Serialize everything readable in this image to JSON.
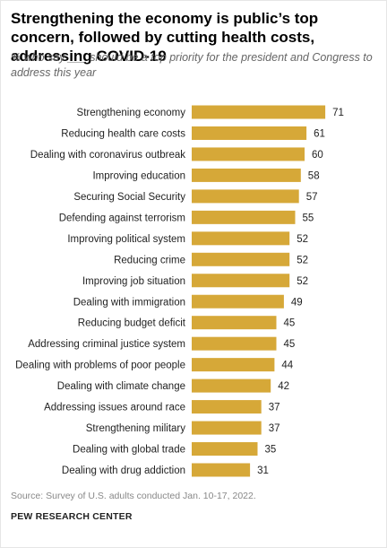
{
  "chart_data": {
    "type": "bar",
    "orientation": "horizontal",
    "title": "Strengthening the economy is public’s top concern, followed by cutting health costs, addressing COVID-19",
    "subtitle": "% who say ___ should be a top priority for the president and Congress to address this year",
    "categories": [
      "Strengthening economy",
      "Reducing health care costs",
      "Dealing with coronavirus outbreak",
      "Improving education",
      "Securing Social Security",
      "Defending against terrorism",
      "Improving political system",
      "Reducing crime",
      "Improving job situation",
      "Dealing with immigration",
      "Reducing budget deficit",
      "Addressing criminal justice system",
      "Dealing with problems of poor people",
      "Dealing with climate change",
      "Addressing issues around race",
      "Strengthening military",
      "Dealing with global trade",
      "Dealing with drug addiction"
    ],
    "values": [
      71,
      61,
      60,
      58,
      57,
      55,
      52,
      52,
      52,
      49,
      45,
      45,
      44,
      42,
      37,
      37,
      35,
      31
    ],
    "color": "#d6a838",
    "source": "Source: Survey of U.S. adults conducted Jan. 10-17, 2022.",
    "organization": "PEW RESEARCH CENTER"
  }
}
